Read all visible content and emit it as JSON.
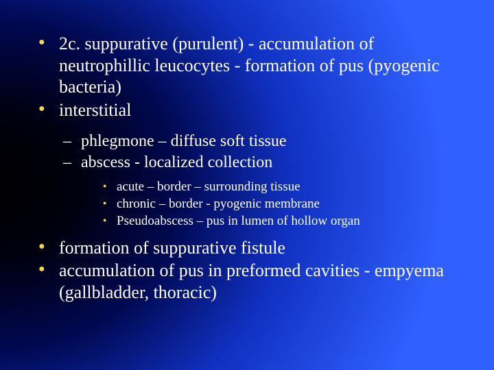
{
  "slide": {
    "background": {
      "type": "radial-gradient",
      "center": "left-middle",
      "stops": [
        "#000000",
        "#000010",
        "#000850",
        "#1030c0",
        "#3060ff"
      ]
    },
    "font_family": "Times New Roman",
    "text_color": "#ffffff",
    "bullet_color_primary": "#f9d84a",
    "lvl1_fontsize_pt": 26,
    "lvl2_fontsize_pt": 24,
    "lvl3_fontsize_pt": 19,
    "block_a": {
      "items": [
        "2c. suppurative (purulent) - accumulation of neutrophillic leucocytes - formation of pus (pyogenic bacteria)",
        "interstitial"
      ],
      "sub_items": [
        "phlegmone – diffuse soft tissue",
        "abscess - localized collection"
      ],
      "sub_sub_items": [
        "acute – border – surrounding tissue",
        "chronic – border - pyogenic membrane",
        "Pseudoabscess – pus in lumen of hollow organ"
      ]
    },
    "block_b": {
      "items": [
        "formation of suppurative fistule",
        "accumulation of pus in preformed cavities - empyema (gallbladder, thoracic)"
      ]
    }
  }
}
